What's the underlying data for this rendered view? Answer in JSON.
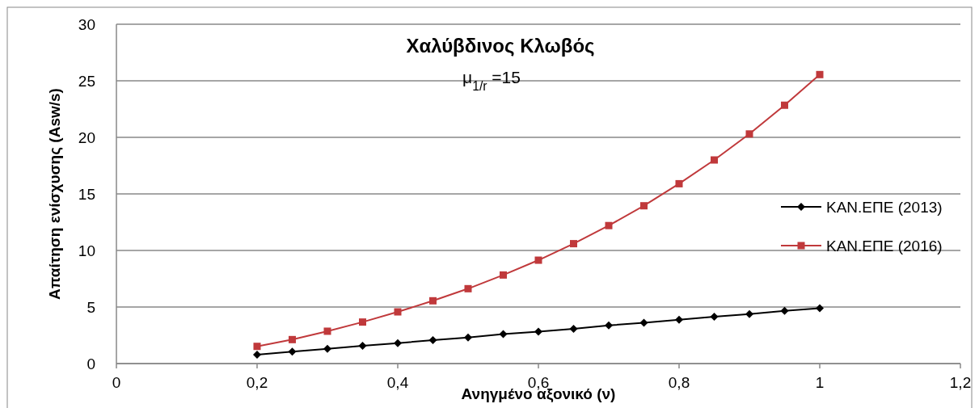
{
  "chart_data": {
    "type": "line",
    "title": "Χαλύβδινος Κλωβός",
    "annotations": [
      "μ$_{1/r}$ =15"
    ],
    "xlabel": "Ανηγμένο αξονικό (ν)",
    "ylabel": "Απαίτηση ενίσχυσης (Asw/s)",
    "x": [
      0.2,
      0.25,
      0.3,
      0.35,
      0.4,
      0.45,
      0.5,
      0.55,
      0.6,
      0.65,
      0.7,
      0.75,
      0.8,
      0.85,
      0.9,
      0.95,
      1
    ],
    "series": [
      {
        "name": "ΚΑΝ.ΕΠΕ (2013)",
        "color": "#000000",
        "marker": "diamond",
        "values": [
          0.79,
          1.05,
          1.31,
          1.57,
          1.81,
          2.07,
          2.31,
          2.6,
          2.83,
          3.08,
          3.38,
          3.6,
          3.88,
          4.14,
          4.38,
          4.66,
          4.9
        ]
      },
      {
        "name": "ΚΑΝ.ΕΠΕ (2016)",
        "color": "#c0393b",
        "marker": "square",
        "values": [
          1.52,
          2.12,
          2.86,
          3.67,
          4.57,
          5.55,
          6.62,
          7.83,
          9.14,
          10.6,
          12.2,
          13.95,
          15.9,
          18.0,
          20.3,
          22.84,
          25.55
        ]
      }
    ],
    "xlim": [
      0,
      1.2
    ],
    "xticks": [
      0,
      {
        "value": 0.2,
        "label": "0,2"
      },
      {
        "value": 0.4,
        "label": "0,4"
      },
      {
        "value": 0.6,
        "label": "0,6"
      },
      {
        "value": 0.8,
        "label": "0,8"
      },
      1,
      {
        "value": 1.2,
        "label": "1,2"
      }
    ],
    "ylim": [
      0,
      30
    ],
    "yticks": [
      0,
      5,
      10,
      15,
      20,
      25,
      30
    ],
    "grid": "y",
    "legend": "right"
  }
}
